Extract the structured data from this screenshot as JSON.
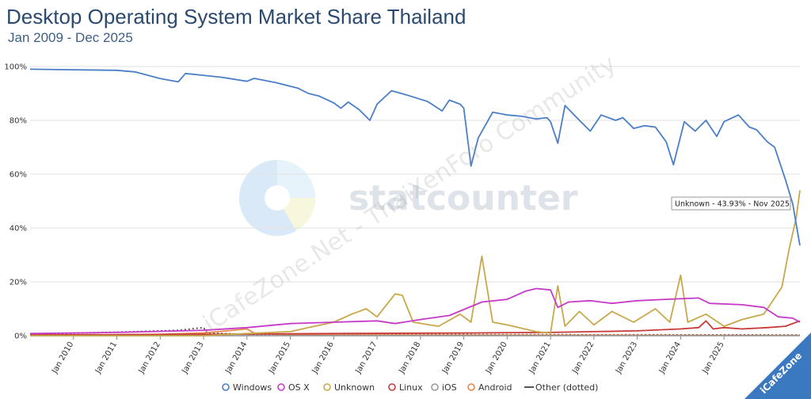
{
  "chart_data": {
    "type": "line",
    "title": "Desktop Operating System Market Share Thailand",
    "subtitle": "Jan 2009 - Dec 2025",
    "ylim": [
      0,
      100
    ],
    "y_ticks": [
      "0%",
      "20%",
      "40%",
      "60%",
      "80%",
      "100%"
    ],
    "x_ticks": [
      "Jan 2010",
      "Jan 2011",
      "Jan 2012",
      "Jan 2013",
      "Jan 2014",
      "Jan 2015",
      "Jan 2016",
      "Jan 2017",
      "Jan 2018",
      "Jan 2019",
      "Jan 2020",
      "Jan 2021",
      "Jan 2022",
      "Jan 2023",
      "Jan 2024",
      "Jan 2025"
    ],
    "x_range": [
      "2009-01",
      "2025-12"
    ],
    "grid": true,
    "legend_position": "bottom",
    "series": [
      {
        "name": "Windows",
        "color": "#4a7fc8",
        "points": [
          [
            "2009-01",
            99.0
          ],
          [
            "2010-01",
            98.8
          ],
          [
            "2011-01",
            98.6
          ],
          [
            "2011-06",
            98.0
          ],
          [
            "2012-01",
            95.5
          ],
          [
            "2012-06",
            94.3
          ],
          [
            "2012-08",
            97.4
          ],
          [
            "2013-06",
            96.0
          ],
          [
            "2014-01",
            94.5
          ],
          [
            "2014-03",
            95.6
          ],
          [
            "2014-09",
            94.0
          ],
          [
            "2015-03",
            92.0
          ],
          [
            "2015-06",
            90.0
          ],
          [
            "2015-09",
            89.0
          ],
          [
            "2016-01",
            86.5
          ],
          [
            "2016-03",
            84.5
          ],
          [
            "2016-05",
            86.8
          ],
          [
            "2016-08",
            84.0
          ],
          [
            "2016-11",
            80.0
          ],
          [
            "2017-01",
            86.0
          ],
          [
            "2017-05",
            91.0
          ],
          [
            "2017-09",
            89.5
          ],
          [
            "2018-03",
            87.0
          ],
          [
            "2018-07",
            83.5
          ],
          [
            "2018-09",
            87.5
          ],
          [
            "2018-12",
            86.0
          ],
          [
            "2019-01",
            84.5
          ],
          [
            "2019-03",
            63.0
          ],
          [
            "2019-05",
            73.5
          ],
          [
            "2019-09",
            83.0
          ],
          [
            "2020-01",
            82.0
          ],
          [
            "2020-05",
            81.5
          ],
          [
            "2020-09",
            80.5
          ],
          [
            "2020-12",
            81.0
          ],
          [
            "2021-01",
            79.5
          ],
          [
            "2021-03",
            71.5
          ],
          [
            "2021-05",
            85.5
          ],
          [
            "2021-09",
            80.0
          ],
          [
            "2021-12",
            76.0
          ],
          [
            "2022-03",
            82.0
          ],
          [
            "2022-07",
            80.0
          ],
          [
            "2022-09",
            81.0
          ],
          [
            "2022-12",
            77.0
          ],
          [
            "2023-03",
            78.0
          ],
          [
            "2023-06",
            77.5
          ],
          [
            "2023-09",
            72.0
          ],
          [
            "2023-11",
            63.5
          ],
          [
            "2024-02",
            79.5
          ],
          [
            "2024-05",
            76.0
          ],
          [
            "2024-08",
            80.0
          ],
          [
            "2024-11",
            74.0
          ],
          [
            "2025-01",
            79.5
          ],
          [
            "2025-05",
            82.0
          ],
          [
            "2025-08",
            77.5
          ],
          [
            "2025-10",
            76.5
          ],
          [
            "2026-01",
            72.0
          ],
          [
            "2026-03",
            70.0
          ],
          [
            "2026-06",
            58.0
          ],
          [
            "2026-08",
            49.0
          ],
          [
            "2026-10",
            33.5
          ]
        ]
      },
      {
        "name": "OS X",
        "color": "#c63ac8",
        "points": [
          [
            "2009-01",
            0.8
          ],
          [
            "2011-01",
            1.2
          ],
          [
            "2013-01",
            2.0
          ],
          [
            "2014-01",
            3.0
          ],
          [
            "2015-01",
            4.5
          ],
          [
            "2016-01",
            5.0
          ],
          [
            "2017-01",
            5.5
          ],
          [
            "2017-06",
            4.5
          ],
          [
            "2018-01",
            6.0
          ],
          [
            "2018-09",
            7.5
          ],
          [
            "2019-06",
            12.5
          ],
          [
            "2020-01",
            13.5
          ],
          [
            "2020-06",
            16.5
          ],
          [
            "2020-09",
            17.5
          ],
          [
            "2021-01",
            17.0
          ],
          [
            "2021-03",
            10.5
          ],
          [
            "2021-06",
            12.5
          ],
          [
            "2021-12",
            13.0
          ],
          [
            "2022-06",
            12.0
          ],
          [
            "2023-01",
            13.0
          ],
          [
            "2023-09",
            13.5
          ],
          [
            "2024-06",
            14.0
          ],
          [
            "2024-09",
            12.0
          ],
          [
            "2025-06",
            11.5
          ],
          [
            "2025-12",
            10.5
          ],
          [
            "2026-04",
            7.0
          ],
          [
            "2026-08",
            6.5
          ],
          [
            "2026-10",
            5.0
          ]
        ]
      },
      {
        "name": "Unknown",
        "color": "#c8a84a",
        "points": [
          [
            "2009-01",
            0
          ],
          [
            "2013-01",
            0
          ],
          [
            "2014-01",
            0.8
          ],
          [
            "2015-01",
            1.5
          ],
          [
            "2015-06",
            3.0
          ],
          [
            "2016-01",
            5.0
          ],
          [
            "2016-06",
            8.0
          ],
          [
            "2016-10",
            10.0
          ],
          [
            "2017-01",
            7.0
          ],
          [
            "2017-06",
            15.5
          ],
          [
            "2017-08",
            15.0
          ],
          [
            "2017-11",
            5.0
          ],
          [
            "2018-06",
            3.5
          ],
          [
            "2018-12",
            8.0
          ],
          [
            "2019-03",
            5.0
          ],
          [
            "2019-06",
            29.5
          ],
          [
            "2019-09",
            5.0
          ],
          [
            "2020-01",
            4.0
          ],
          [
            "2020-09",
            1.5
          ],
          [
            "2021-01",
            1.0
          ],
          [
            "2021-03",
            18.5
          ],
          [
            "2021-05",
            3.5
          ],
          [
            "2021-09",
            9.0
          ],
          [
            "2022-01",
            4.0
          ],
          [
            "2022-06",
            9.0
          ],
          [
            "2022-12",
            5.0
          ],
          [
            "2023-06",
            10.0
          ],
          [
            "2023-10",
            5.0
          ],
          [
            "2024-01",
            22.5
          ],
          [
            "2024-03",
            5.0
          ],
          [
            "2024-08",
            8.0
          ],
          [
            "2025-01",
            3.5
          ],
          [
            "2025-06",
            6.0
          ],
          [
            "2025-12",
            8.0
          ],
          [
            "2026-02",
            12.0
          ],
          [
            "2026-05",
            18.0
          ],
          [
            "2026-07",
            32.0
          ],
          [
            "2026-09",
            43.9
          ],
          [
            "2026-10",
            54.0
          ]
        ]
      },
      {
        "name": "Linux",
        "color": "#c83a3a",
        "points": [
          [
            "2009-01",
            0.3
          ],
          [
            "2013-01",
            0.5
          ],
          [
            "2016-01",
            0.8
          ],
          [
            "2019-01",
            1.0
          ],
          [
            "2021-01",
            1.2
          ],
          [
            "2023-01",
            1.8
          ],
          [
            "2024-01",
            2.5
          ],
          [
            "2024-06",
            3.0
          ],
          [
            "2024-08",
            5.5
          ],
          [
            "2024-10",
            2.5
          ],
          [
            "2025-01",
            3.0
          ],
          [
            "2025-06",
            2.5
          ],
          [
            "2026-01",
            3.0
          ],
          [
            "2026-06",
            3.5
          ],
          [
            "2026-10",
            5.5
          ]
        ]
      },
      {
        "name": "iOS",
        "color": "#999999",
        "points": [
          [
            "2009-01",
            0
          ],
          [
            "2026-10",
            0
          ]
        ]
      },
      {
        "name": "Android",
        "color": "#e8874a",
        "points": [
          [
            "2009-01",
            0
          ],
          [
            "2012-01",
            0.5
          ],
          [
            "2013-01",
            1.0
          ],
          [
            "2014-01",
            2.5
          ],
          [
            "2014-03",
            1.0
          ],
          [
            "2015-01",
            0.3
          ],
          [
            "2026-10",
            0.1
          ]
        ]
      },
      {
        "name": "Other (dotted)",
        "color": "#555555",
        "points": [
          [
            "2009-01",
            0.5
          ],
          [
            "2011-06",
            1.5
          ],
          [
            "2012-06",
            2.0
          ],
          [
            "2013-01",
            3.0
          ],
          [
            "2013-02",
            1.0
          ],
          [
            "2014-01",
            0.5
          ],
          [
            "2026-10",
            0.3
          ]
        ]
      }
    ],
    "tooltip": "Unknown - 43.93% - Nov 2025"
  },
  "watermarks": [
    "statcounter",
    "iCafeZone.Net - ThaiXenForo Community",
    "iCafeZone"
  ]
}
